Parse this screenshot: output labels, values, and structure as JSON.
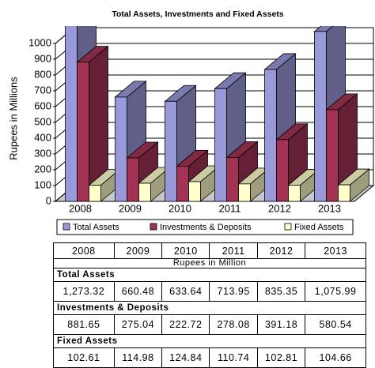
{
  "chart_data": {
    "type": "bar3d",
    "title": "Total Assets, Investments and Fixed Assets",
    "ylabel": "Rupees in Millions",
    "categories": [
      "2008",
      "2009",
      "2010",
      "2011",
      "2012",
      "2013"
    ],
    "series": [
      {
        "name": "Total Assets",
        "color": "#9999d9",
        "values": [
          1273.32,
          660.48,
          633.64,
          713.95,
          835.35,
          1075.99
        ],
        "value_labels": [
          "1,273.32",
          "660.48",
          "633.64",
          "713.95",
          "835.35",
          "1,075.99"
        ]
      },
      {
        "name": "Investments & Deposits",
        "color": "#a33355",
        "values": [
          881.65,
          275.04,
          222.72,
          278.08,
          391.18,
          580.54
        ],
        "value_labels": [
          "881.65",
          "275.04",
          "222.72",
          "278.08",
          "391.18",
          "580.54"
        ]
      },
      {
        "name": "Fixed Assets",
        "color": "#ffffcc",
        "values": [
          102.61,
          114.98,
          124.84,
          110.74,
          102.81,
          104.66
        ],
        "value_labels": [
          "102.61",
          "114.98",
          "124.84",
          "110.74",
          "102.81",
          "104.66"
        ]
      }
    ],
    "ylim": [
      0,
      1000
    ],
    "yticks": [
      0,
      100,
      200,
      300,
      400,
      500,
      600,
      700,
      800,
      900,
      1000
    ],
    "grid": true
  },
  "table": {
    "unit": "Rupees in Million"
  }
}
